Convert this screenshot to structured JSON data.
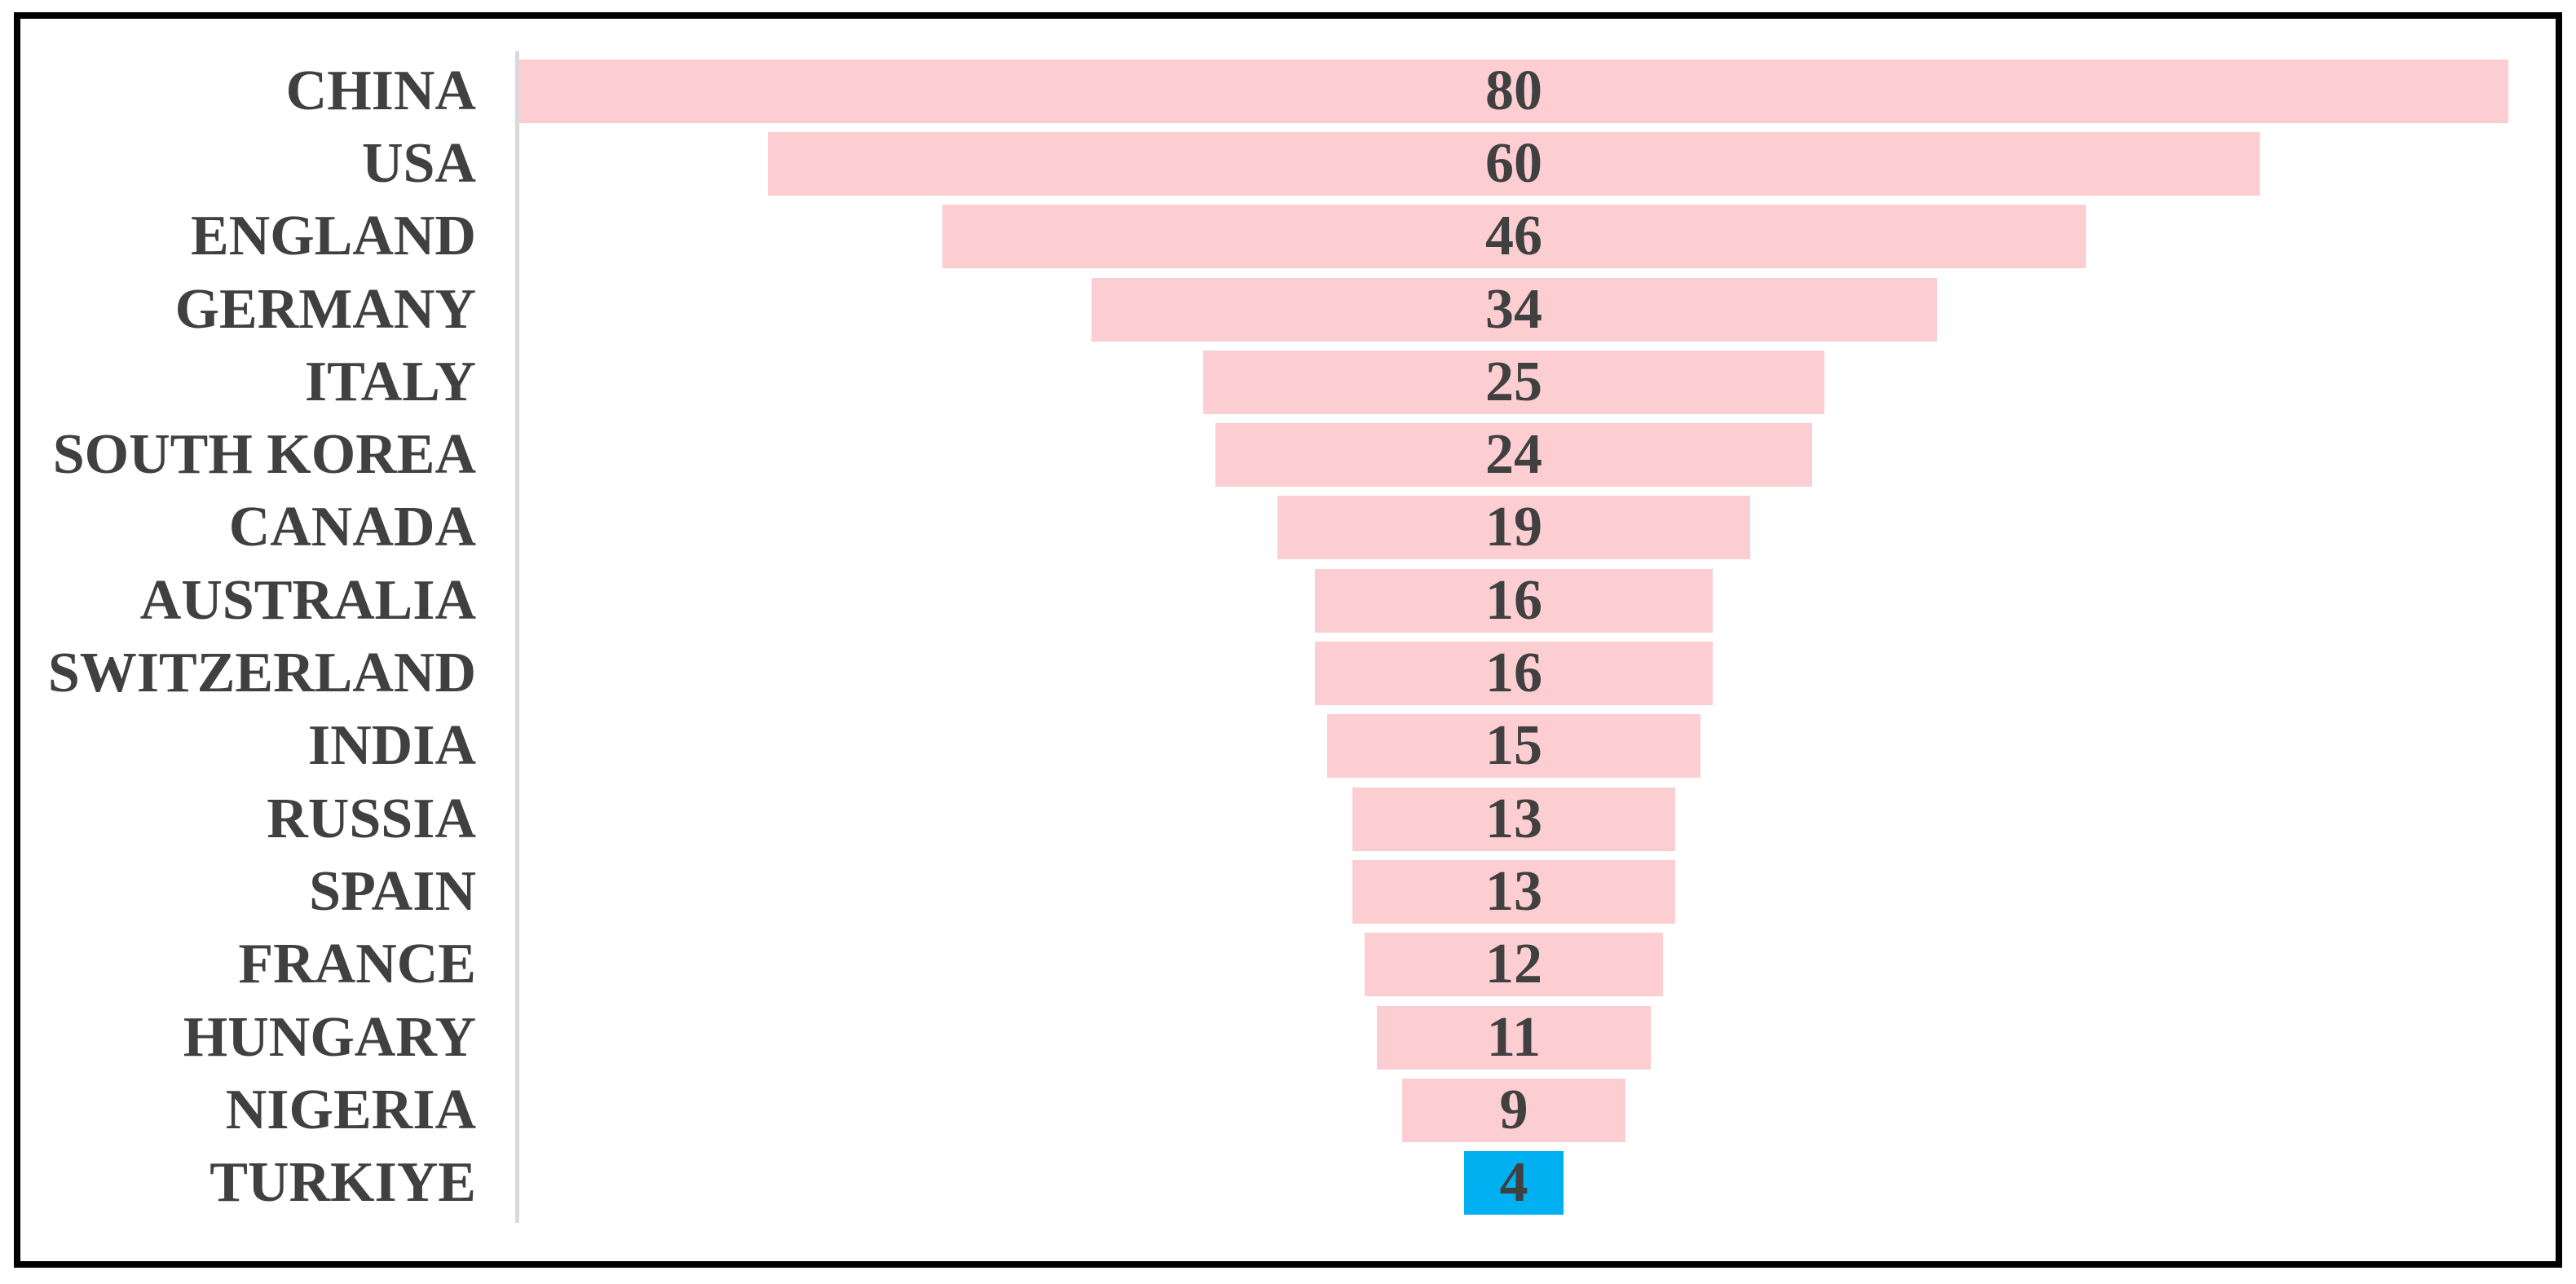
{
  "chart_data": {
    "type": "bar",
    "subtype": "centered-funnel-horizontal",
    "title": "",
    "categories": [
      "CHINA",
      "USA",
      "ENGLAND",
      "GERMANY",
      "ITALY",
      "SOUTH KOREA",
      "CANADA",
      "AUSTRALIA",
      "SWITZERLAND",
      "INDIA",
      "RUSSIA",
      "SPAIN",
      "FRANCE",
      "HUNGARY",
      "NIGERIA",
      "TURKIYE"
    ],
    "values": [
      80,
      60,
      46,
      34,
      25,
      24,
      19,
      16,
      16,
      15,
      13,
      13,
      12,
      11,
      9,
      4
    ],
    "xlim": [
      0,
      80
    ],
    "xlabel": "",
    "ylabel": "",
    "grid": false,
    "legend": "none",
    "data_labels_position": "inside-center",
    "highlight_category": "TURKIYE",
    "colors": {
      "bar_default": "#FCCDD1",
      "bar_highlight": "#00B0F0",
      "category_text": "#404040",
      "value_text": "#404040",
      "axis_line": "#D9D9D9",
      "frame_border": "#000000",
      "background": "#FFFFFF"
    }
  }
}
